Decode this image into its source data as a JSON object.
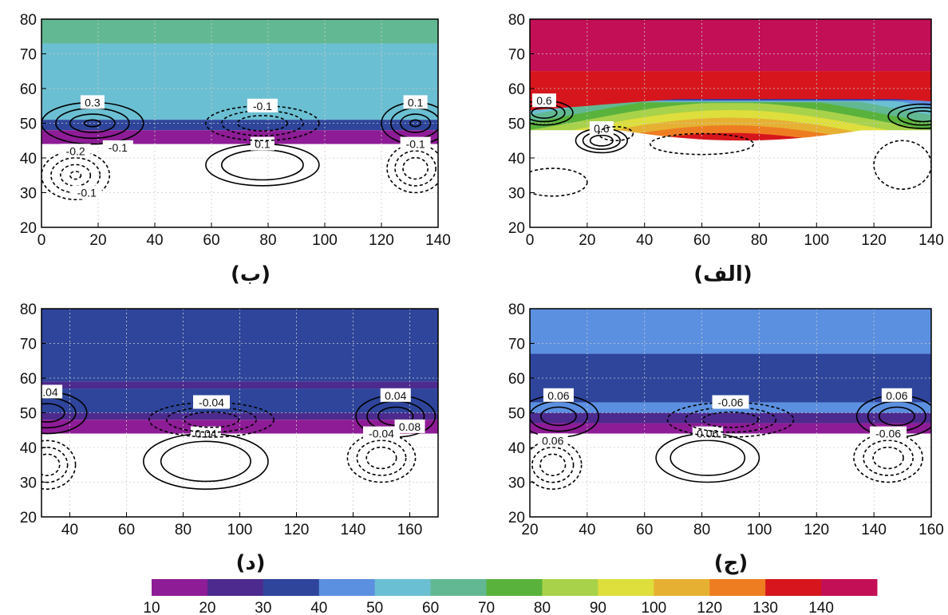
{
  "colorbar": {
    "ticks": [
      "10",
      "20",
      "30",
      "40",
      "50",
      "60",
      "70",
      "80",
      "90",
      "100",
      "120",
      "130",
      "140"
    ],
    "colors": [
      "#8e1c96",
      "#4d2a8e",
      "#2e459b",
      "#5b8fe0",
      "#6bbfd2",
      "#62b892",
      "#59b23c",
      "#a8d24a",
      "#dede3c",
      "#e6b132",
      "#ee7d22",
      "#d6161c",
      "#c30f55"
    ]
  },
  "chart_data": [
    {
      "type": "heatmap",
      "panel_label": "(الف)",
      "xlim": [
        0,
        140
      ],
      "ylim": [
        20,
        80
      ],
      "xticks": [
        0,
        20,
        40,
        60,
        80,
        100,
        120,
        140
      ],
      "yticks": [
        20,
        30,
        40,
        50,
        60,
        70,
        80
      ],
      "fill_bands": [
        {
          "from": 65,
          "to": 80,
          "value": 145,
          "color": "#c30f55"
        },
        {
          "from": 57,
          "to": 65,
          "value": 135,
          "color": "#d6161c"
        },
        {
          "from": 46,
          "to": 57,
          "value": 70,
          "color": "#5b8fe0",
          "note_values": [
            10,
            20,
            30,
            40,
            50,
            60,
            70,
            80,
            90,
            100,
            120,
            130
          ]
        }
      ],
      "contours": [
        {
          "style": "solid",
          "x": 25,
          "y": 45,
          "rx": 9,
          "ry": 3.5,
          "levels": 3,
          "label": "0.6"
        },
        {
          "style": "solid",
          "x": 5,
          "y": 53,
          "rx": 10,
          "ry": 3.5,
          "levels": 3,
          "label": "0.6"
        },
        {
          "style": "solid",
          "x": 137,
          "y": 52,
          "rx": 12,
          "ry": 3.5,
          "levels": 3,
          "label": ""
        },
        {
          "style": "dashed",
          "x": 8,
          "y": 33,
          "rx": 12,
          "ry": 4,
          "levels": 1,
          "label": ""
        },
        {
          "style": "dashed",
          "x": 30,
          "y": 47,
          "rx": 6,
          "ry": 2,
          "levels": 1,
          "label": ""
        },
        {
          "style": "dashed",
          "x": 60,
          "y": 44,
          "rx": 18,
          "ry": 3,
          "levels": 1,
          "label": ""
        },
        {
          "style": "dashed",
          "x": 130,
          "y": 38,
          "rx": 10,
          "ry": 7,
          "levels": 1,
          "label": ""
        }
      ]
    },
    {
      "type": "heatmap",
      "panel_label": "(ب)",
      "xlim": [
        0,
        140
      ],
      "ylim": [
        20,
        80
      ],
      "xticks": [
        0,
        20,
        40,
        60,
        80,
        100,
        120,
        140
      ],
      "yticks": [
        20,
        30,
        40,
        50,
        60,
        70,
        80
      ],
      "fill_bands": [
        {
          "from": 73,
          "to": 80,
          "value": 65,
          "color": "#62b892"
        },
        {
          "from": 51,
          "to": 73,
          "value": 55,
          "color": "#6bbfd2"
        },
        {
          "from": 48,
          "to": 51,
          "value": 35,
          "color": "#2e459b"
        },
        {
          "from": 44,
          "to": 48,
          "value": 15,
          "color": "#8e1c96"
        }
      ],
      "contours": [
        {
          "style": "solid",
          "x": 18,
          "y": 50,
          "rx": 18,
          "ry": 6,
          "levels": 4,
          "label": "0.3"
        },
        {
          "style": "solid",
          "x": 132,
          "y": 50,
          "rx": 12,
          "ry": 6,
          "levels": 4,
          "label": "0.1"
        },
        {
          "style": "solid",
          "x": 78,
          "y": 38,
          "rx": 20,
          "ry": 6,
          "levels": 2,
          "label": "0.1"
        },
        {
          "style": "dashed",
          "x": 78,
          "y": 50,
          "rx": 20,
          "ry": 5,
          "levels": 3,
          "label": "-0.1"
        },
        {
          "style": "dashed",
          "x": 12,
          "y": 35,
          "rx": 12,
          "ry": 7,
          "levels": 4,
          "label": "-0.2"
        },
        {
          "style": "dashed",
          "x": 132,
          "y": 37,
          "rx": 10,
          "ry": 7,
          "levels": 3,
          "label": "-0.1"
        }
      ],
      "extra_labels": [
        {
          "text": "-0.1",
          "x": 27,
          "y": 43
        },
        {
          "text": "-0.1",
          "x": 16,
          "y": 30
        }
      ]
    },
    {
      "type": "heatmap",
      "panel_label": "(ج)",
      "xlim": [
        20,
        160
      ],
      "ylim": [
        20,
        80
      ],
      "xticks": [
        20,
        40,
        60,
        80,
        100,
        120,
        140,
        160
      ],
      "yticks": [
        20,
        30,
        40,
        50,
        60,
        70,
        80
      ],
      "fill_bands": [
        {
          "from": 67,
          "to": 80,
          "value": 45,
          "color": "#5b8fe0"
        },
        {
          "from": 53,
          "to": 67,
          "value": 35,
          "color": "#2e459b"
        },
        {
          "from": 50,
          "to": 53,
          "value": 45,
          "color": "#5b8fe0"
        },
        {
          "from": 47,
          "to": 50,
          "value": 25,
          "color": "#4d2a8e"
        },
        {
          "from": 44,
          "to": 47,
          "value": 15,
          "color": "#8e1c96"
        }
      ],
      "contours": [
        {
          "style": "solid",
          "x": 30,
          "y": 49,
          "rx": 14,
          "ry": 6,
          "levels": 3,
          "label": "0.06"
        },
        {
          "style": "solid",
          "x": 148,
          "y": 49,
          "rx": 14,
          "ry": 6,
          "levels": 3,
          "label": "0.06"
        },
        {
          "style": "solid",
          "x": 82,
          "y": 37,
          "rx": 18,
          "ry": 7,
          "levels": 2,
          "label": "0.06"
        },
        {
          "style": "dashed",
          "x": 90,
          "y": 48,
          "rx": 22,
          "ry": 5,
          "levels": 3,
          "label": "-0.06"
        },
        {
          "style": "dashed",
          "x": 28,
          "y": 35,
          "rx": 10,
          "ry": 7,
          "levels": 3,
          "label": "0.06"
        },
        {
          "style": "dashed",
          "x": 145,
          "y": 37,
          "rx": 12,
          "ry": 7,
          "levels": 3,
          "label": "-0.06"
        }
      ]
    },
    {
      "type": "heatmap",
      "panel_label": "(د)",
      "xlim": [
        30,
        170
      ],
      "ylim": [
        20,
        80
      ],
      "xticks": [
        40,
        60,
        80,
        100,
        120,
        140,
        160
      ],
      "yticks": [
        20,
        30,
        40,
        50,
        60,
        70,
        80
      ],
      "fill_bands": [
        {
          "from": 59,
          "to": 80,
          "value": 35,
          "color": "#2e459b"
        },
        {
          "from": 57,
          "to": 59,
          "value": 25,
          "color": "#4d2a8e"
        },
        {
          "from": 50,
          "to": 57,
          "value": 35,
          "color": "#2e459b"
        },
        {
          "from": 48,
          "to": 50,
          "value": 25,
          "color": "#4d2a8e"
        },
        {
          "from": 44,
          "to": 48,
          "value": 15,
          "color": "#8e1c96"
        }
      ],
      "contours": [
        {
          "style": "solid",
          "x": 32,
          "y": 50,
          "rx": 14,
          "ry": 6,
          "levels": 3,
          "label": "0.04"
        },
        {
          "style": "solid",
          "x": 155,
          "y": 49,
          "rx": 14,
          "ry": 6,
          "levels": 3,
          "label": "0.04"
        },
        {
          "style": "solid",
          "x": 88,
          "y": 36,
          "rx": 22,
          "ry": 8,
          "levels": 2,
          "label": "0.04"
        },
        {
          "style": "dashed",
          "x": 90,
          "y": 48,
          "rx": 22,
          "ry": 5,
          "levels": 3,
          "label": "-0.04"
        },
        {
          "style": "dashed",
          "x": 32,
          "y": 35,
          "rx": 10,
          "ry": 7,
          "levels": 3,
          "label": ""
        },
        {
          "style": "dashed",
          "x": 150,
          "y": 37,
          "rx": 12,
          "ry": 7,
          "levels": 3,
          "label": "-0.04"
        }
      ],
      "extra_labels": [
        {
          "text": "0.08",
          "x": 160,
          "y": 46
        }
      ]
    }
  ]
}
